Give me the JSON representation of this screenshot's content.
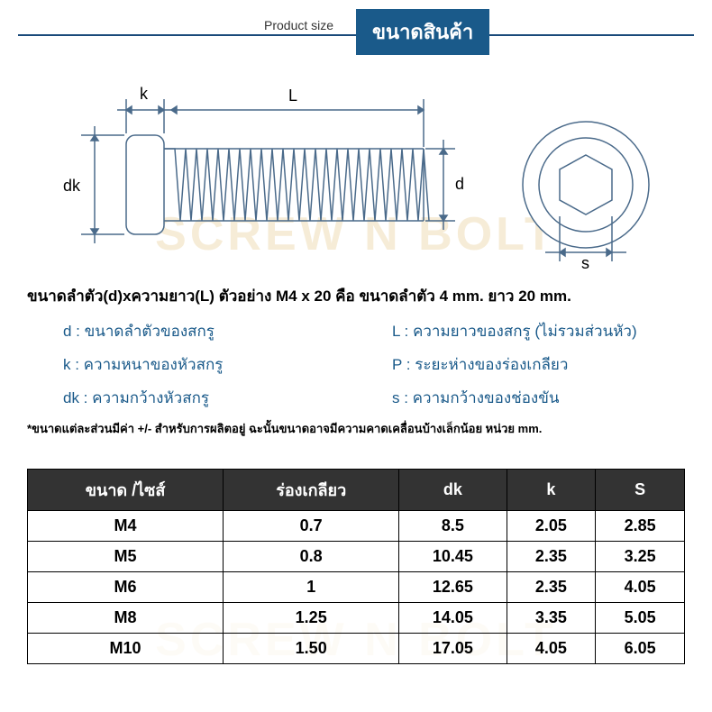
{
  "header": {
    "subtitle": "Product size",
    "badge": "ขนาดสินค้า"
  },
  "watermark": "SCREW N BOLT",
  "diagram": {
    "labels": {
      "k": "k",
      "L": "L",
      "dk": "dk",
      "d": "d",
      "s": "s"
    },
    "stroke": "#4a6a8a",
    "stroke_width": 1.5
  },
  "description": {
    "title": "ขนาดลำตัว(d)xความยาว(L) ตัวอย่าง M4 x 20 คือ ขนาดลำตัว 4 mm. ยาว 20 mm.",
    "defs": [
      {
        "left": "d : ขนาดลำตัวของสกรู",
        "right": "L : ความยาวของสกรู (ไม่รวมส่วนหัว)"
      },
      {
        "left": "k : ความหนาของหัวสกรู",
        "right": "P : ระยะห่างของร่องเกลียว"
      },
      {
        "left": "dk : ความกว้างหัวสกรู",
        "right": "s : ความกว้างของช่องขัน"
      }
    ],
    "footnote": "*ขนาดแต่ละส่วนมีค่า +/- สำหรับการผลิตอยู่ ฉะนั้นขนาดอาจมีความคาดเคลื่อนบ้างเล็กน้อย หน่วย mm."
  },
  "table": {
    "columns": [
      "ขนาด /ไซส์",
      "ร่องเกลียว",
      "dk",
      "k",
      "S"
    ],
    "rows": [
      [
        "M4",
        "0.7",
        "8.5",
        "2.05",
        "2.85"
      ],
      [
        "M5",
        "0.8",
        "10.45",
        "2.35",
        "3.25"
      ],
      [
        "M6",
        "1",
        "12.65",
        "2.35",
        "4.05"
      ],
      [
        "M8",
        "1.25",
        "14.05",
        "3.35",
        "5.05"
      ],
      [
        "M10",
        "1.50",
        "17.05",
        "4.05",
        "6.05"
      ]
    ],
    "header_bg": "#333333",
    "header_color": "#ffffff",
    "border_color": "#000000",
    "cell_fontsize": 18
  },
  "colors": {
    "accent": "#1a5a8a",
    "text": "#000000",
    "def_text": "#1a5a8a"
  }
}
